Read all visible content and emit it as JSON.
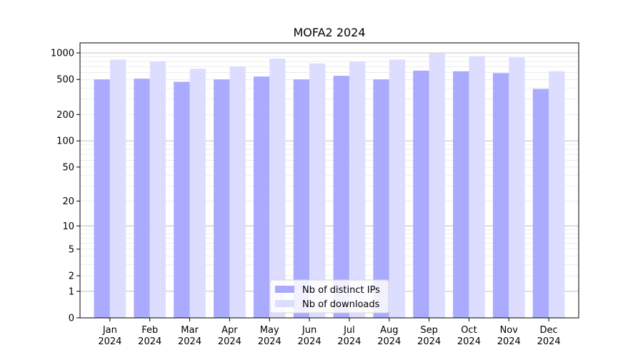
{
  "chart_data": {
    "type": "bar",
    "title": "MOFA2 2024",
    "xlabel": "",
    "ylabel": "",
    "scale": "symlog",
    "ylim": [
      0,
      1300
    ],
    "yticks": [
      0,
      1,
      2,
      5,
      10,
      20,
      50,
      100,
      200,
      500,
      1000
    ],
    "categories": [
      [
        "Jan",
        "2024"
      ],
      [
        "Feb",
        "2024"
      ],
      [
        "Mar",
        "2024"
      ],
      [
        "Apr",
        "2024"
      ],
      [
        "May",
        "2024"
      ],
      [
        "Jun",
        "2024"
      ],
      [
        "Jul",
        "2024"
      ],
      [
        "Aug",
        "2024"
      ],
      [
        "Sep",
        "2024"
      ],
      [
        "Oct",
        "2024"
      ],
      [
        "Nov",
        "2024"
      ],
      [
        "Dec",
        "2024"
      ]
    ],
    "series": [
      {
        "name": "Nb of distinct IPs",
        "color": "#aaaaff",
        "values": [
          500,
          510,
          470,
          500,
          540,
          500,
          550,
          500,
          630,
          620,
          590,
          390
        ]
      },
      {
        "name": "Nb of downloads",
        "color": "#ddddff",
        "values": [
          840,
          800,
          660,
          700,
          860,
          760,
          800,
          840,
          1000,
          920,
          890,
          620
        ]
      }
    ],
    "grid": true,
    "legend_position": "bottom-center"
  }
}
